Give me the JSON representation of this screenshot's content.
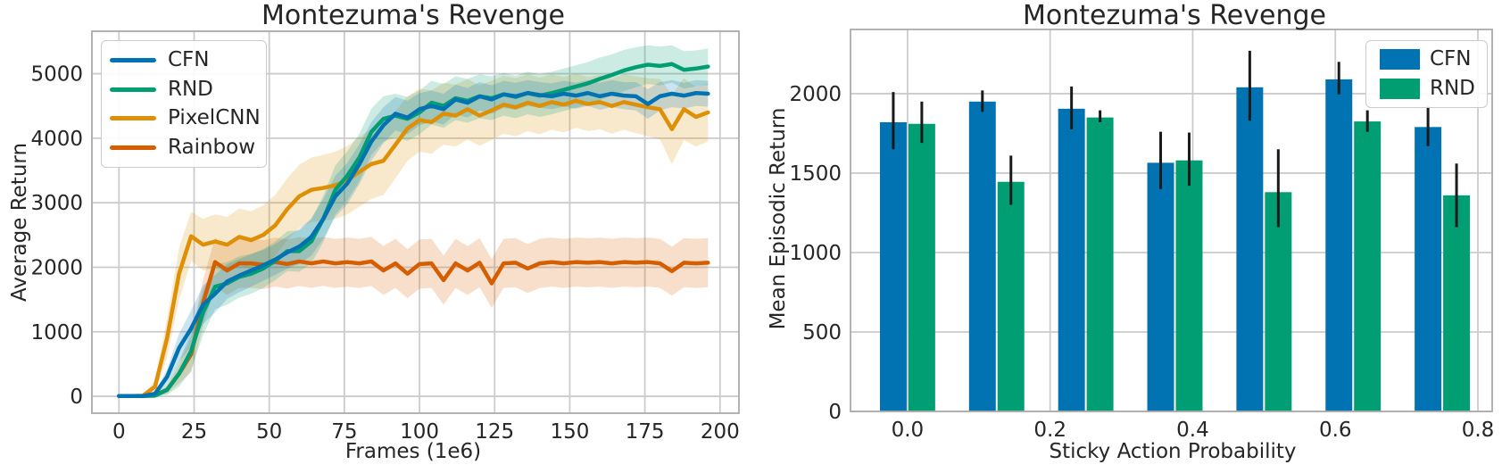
{
  "colors": {
    "cfn_blue": "#0173b2",
    "rnd_green": "#029e73",
    "pixelcnn_orange": "#de8f05",
    "rainbow_red": "#d55e00",
    "grid": "#cccccc",
    "frame": "#ababab",
    "errorbar": "#1a1a1a",
    "text": "#262626"
  },
  "chart_data": [
    {
      "type": "line",
      "title": "Montezuma's Revenge",
      "xlabel": "Frames (1e6)",
      "ylabel": "Average Return",
      "xlim": [
        -9,
        206.3
      ],
      "ylim": [
        -262,
        5658
      ],
      "xticks": [
        0,
        25,
        50,
        75,
        100,
        125,
        150,
        175,
        200
      ],
      "xtick_labels": [
        "0",
        "25",
        "50",
        "75",
        "100",
        "125",
        "150",
        "175",
        "200"
      ],
      "yticks": [
        0,
        1000,
        2000,
        3000,
        4000,
        5000
      ],
      "ytick_labels": [
        "0",
        "1000",
        "2000",
        "3000",
        "4000",
        "5000"
      ],
      "grid": true,
      "legend_position": "top-left",
      "x": [
        0,
        4,
        8,
        12,
        16,
        20,
        24,
        28,
        32,
        36,
        40,
        44,
        48,
        52,
        56,
        60,
        64,
        68,
        72,
        76,
        80,
        84,
        88,
        92,
        96,
        100,
        104,
        108,
        112,
        116,
        120,
        124,
        128,
        132,
        136,
        140,
        144,
        148,
        152,
        156,
        160,
        164,
        168,
        172,
        176,
        180,
        184,
        188,
        192,
        196
      ],
      "series": [
        {
          "name": "CFN",
          "color": "#0173b2",
          "values": [
            5,
            5,
            5,
            40,
            300,
            750,
            1050,
            1420,
            1590,
            1780,
            1870,
            1950,
            2030,
            2120,
            2230,
            2320,
            2470,
            2750,
            3100,
            3300,
            3600,
            3950,
            4200,
            4380,
            4320,
            4450,
            4500,
            4450,
            4600,
            4550,
            4650,
            4600,
            4680,
            4650,
            4700,
            4670,
            4650,
            4690,
            4660,
            4700,
            4650,
            4690,
            4660,
            4650,
            4530,
            4650,
            4690,
            4660,
            4700,
            4690
          ],
          "band": [
            0,
            0,
            0,
            30,
            120,
            220,
            280,
            300,
            290,
            270,
            260,
            250,
            240,
            240,
            250,
            270,
            290,
            310,
            320,
            320,
            310,
            300,
            280,
            260,
            260,
            250,
            240,
            240,
            230,
            230,
            220,
            220,
            210,
            210,
            200,
            200,
            200,
            200,
            200,
            200,
            210,
            210,
            210,
            220,
            230,
            220,
            210,
            200,
            200,
            200
          ]
        },
        {
          "name": "RND",
          "color": "#029e73",
          "values": [
            5,
            5,
            5,
            10,
            100,
            350,
            700,
            1300,
            1700,
            1750,
            1850,
            1900,
            1980,
            2100,
            2250,
            2250,
            2400,
            2750,
            3200,
            3420,
            3700,
            4100,
            4300,
            4350,
            4300,
            4400,
            4550,
            4500,
            4620,
            4580,
            4650,
            4620,
            4680,
            4640,
            4700,
            4660,
            4700,
            4750,
            4800,
            4850,
            4920,
            4980,
            5050,
            5100,
            5140,
            5120,
            5150,
            5060,
            5080,
            5110
          ],
          "band": [
            0,
            0,
            0,
            10,
            80,
            200,
            300,
            350,
            350,
            330,
            320,
            310,
            300,
            300,
            310,
            320,
            340,
            360,
            380,
            380,
            370,
            360,
            350,
            340,
            340,
            340,
            340,
            340,
            340,
            340,
            340,
            340,
            330,
            330,
            330,
            330,
            330,
            330,
            330,
            330,
            330,
            320,
            320,
            310,
            300,
            300,
            290,
            290,
            280,
            280
          ]
        },
        {
          "name": "PixelCNN",
          "color": "#de8f05",
          "values": [
            5,
            5,
            10,
            150,
            900,
            1900,
            2480,
            2350,
            2400,
            2350,
            2470,
            2420,
            2500,
            2650,
            2900,
            3100,
            3200,
            3230,
            3270,
            3350,
            3480,
            3600,
            3650,
            3900,
            4150,
            4280,
            4250,
            4380,
            4350,
            4450,
            4350,
            4430,
            4520,
            4480,
            4550,
            4500,
            4560,
            4520,
            4580,
            4530,
            4560,
            4500,
            4560,
            4520,
            4480,
            4450,
            4140,
            4450,
            4330,
            4400
          ],
          "band": [
            0,
            0,
            5,
            100,
            300,
            400,
            380,
            400,
            420,
            430,
            440,
            450,
            460,
            470,
            480,
            490,
            500,
            510,
            520,
            530,
            540,
            540,
            530,
            520,
            500,
            490,
            490,
            480,
            480,
            470,
            470,
            460,
            450,
            450,
            440,
            440,
            430,
            430,
            420,
            420,
            420,
            430,
            430,
            440,
            450,
            470,
            540,
            480,
            460,
            450
          ]
        },
        {
          "name": "Rainbow",
          "color": "#d55e00",
          "values": [
            5,
            5,
            5,
            20,
            100,
            350,
            650,
            1450,
            2080,
            1950,
            2060,
            2060,
            2040,
            2080,
            2050,
            2090,
            2060,
            2090,
            2060,
            2080,
            2060,
            2090,
            1950,
            2060,
            1900,
            2050,
            2060,
            1800,
            2060,
            1950,
            2070,
            1750,
            2060,
            2070,
            1980,
            2060,
            2080,
            2060,
            2080,
            2070,
            2080,
            2060,
            2080,
            2070,
            2080,
            2060,
            1940,
            2070,
            2060,
            2070
          ],
          "band": [
            0,
            0,
            0,
            10,
            60,
            150,
            280,
            360,
            380,
            380,
            380,
            380,
            380,
            380,
            380,
            380,
            380,
            380,
            380,
            380,
            380,
            380,
            380,
            380,
            380,
            380,
            380,
            380,
            380,
            380,
            380,
            380,
            380,
            380,
            380,
            380,
            380,
            380,
            380,
            380,
            380,
            380,
            380,
            380,
            380,
            380,
            380,
            380,
            380,
            380
          ]
        }
      ]
    },
    {
      "type": "bar",
      "title": "Montezuma's Revenge",
      "xlabel": "Sticky Action Probability",
      "ylabel": "Mean Episodic Return",
      "xlim": [
        -0.08,
        0.82
      ],
      "ylim": [
        0,
        2404
      ],
      "xticks": [
        0.0,
        0.2,
        0.4,
        0.6,
        0.8
      ],
      "xtick_labels": [
        "0.0",
        "0.2",
        "0.4",
        "0.6",
        "0.8"
      ],
      "yticks": [
        0,
        500,
        1000,
        1500,
        2000
      ],
      "ytick_labels": [
        "0",
        "500",
        "1000",
        "1500",
        "2000"
      ],
      "grid": true,
      "legend_position": "top-right",
      "group_positions": [
        0,
        0.125,
        0.25,
        0.375,
        0.5,
        0.625,
        0.75
      ],
      "bar_width": 0.0375,
      "series": [
        {
          "name": "CFN",
          "color": "#0173b2",
          "values": [
            1820,
            1950,
            1905,
            1565,
            2040,
            2090,
            1790
          ],
          "err": [
            [
              1650,
              2010
            ],
            [
              1885,
              2020
            ],
            [
              1775,
              2045
            ],
            [
              1400,
              1760
            ],
            [
              1830,
              2270
            ],
            [
              1995,
              2200
            ],
            [
              1670,
              1920
            ]
          ]
        },
        {
          "name": "RND",
          "color": "#029e73",
          "values": [
            1810,
            1445,
            1850,
            1580,
            1380,
            1825,
            1360
          ],
          "err": [
            [
              1690,
              1950
            ],
            [
              1300,
              1610
            ],
            [
              1820,
              1895
            ],
            [
              1420,
              1755
            ],
            [
              1160,
              1650
            ],
            [
              1760,
              1895
            ],
            [
              1160,
              1560
            ]
          ]
        }
      ]
    }
  ]
}
